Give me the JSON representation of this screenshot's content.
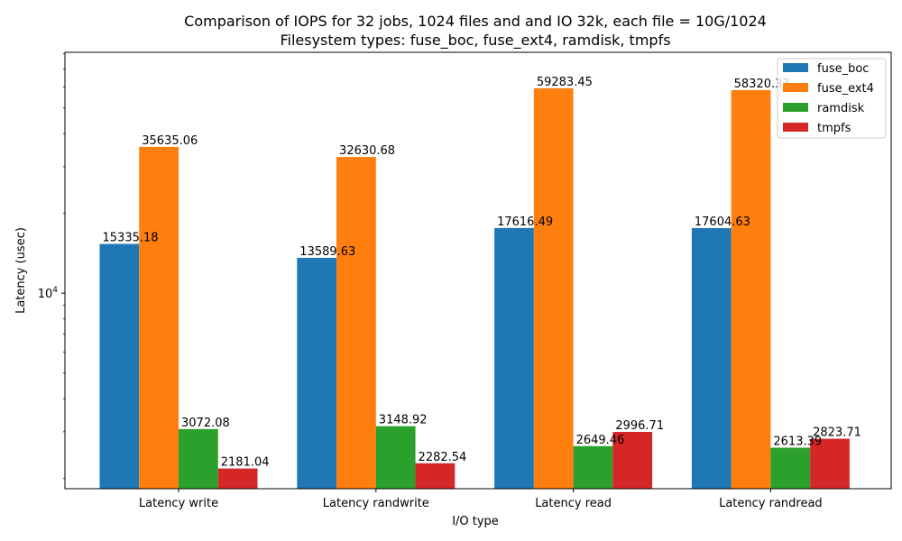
{
  "chart_data": {
    "type": "bar",
    "title_lines": [
      "Comparison of IOPS for 32 jobs, 1024 files and  and IO 32k, each file = 10G/1024",
      "Filesystem types: fuse_boc, fuse_ext4, ramdisk, tmpfs"
    ],
    "xlabel": "I/O type",
    "ylabel": "Latency (usec)",
    "yscale": "log",
    "ylim": [
      1830,
      81000
    ],
    "ytick_major": [
      {
        "value": 10000,
        "label": "10^4"
      }
    ],
    "ytick_minor": [
      2000,
      3000,
      4000,
      5000,
      6000,
      7000,
      8000,
      9000,
      20000,
      30000,
      40000,
      50000,
      60000,
      70000,
      80000
    ],
    "categories": [
      "Latency write",
      "Latency randwrite",
      "Latency read",
      "Latency randread"
    ],
    "series": [
      {
        "name": "fuse_boc",
        "color": "#1f77b4",
        "values": [
          15335.18,
          13589.63,
          17616.49,
          17604.63
        ]
      },
      {
        "name": "fuse_ext4",
        "color": "#ff7f0e",
        "values": [
          35635.06,
          32630.68,
          59283.45,
          58320.33
        ]
      },
      {
        "name": "ramdisk",
        "color": "#2ca02c",
        "values": [
          3072.08,
          3148.92,
          2649.46,
          2613.39
        ]
      },
      {
        "name": "tmpfs",
        "color": "#d62728",
        "values": [
          2181.04,
          2282.54,
          2996.71,
          2823.71
        ]
      }
    ],
    "value_labels": [
      [
        "15335.18",
        "13589.63",
        "17616.49",
        "17604.63"
      ],
      [
        "35635.06",
        "32630.68",
        "59283.45",
        "58320.33"
      ],
      [
        "3072.08",
        "3148.92",
        "2649.46",
        "2613.39"
      ],
      [
        "2181.04",
        "2282.54",
        "2996.71",
        "2823.71"
      ]
    ],
    "legend_position": "top-right",
    "grid": false
  }
}
